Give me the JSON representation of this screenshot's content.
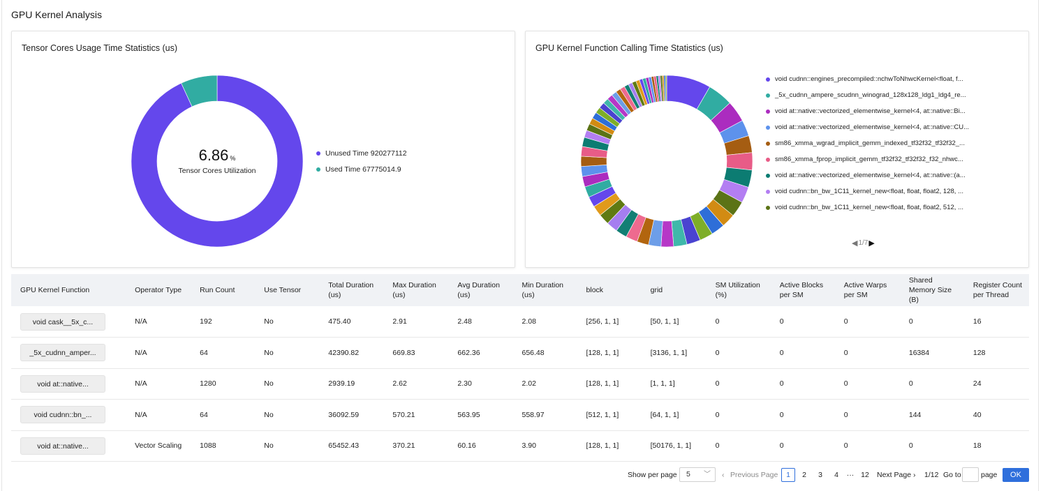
{
  "page": {
    "title": "GPU Kernel Analysis"
  },
  "tensor_card": {
    "title": "Tensor Cores Usage Time Statistics (us)",
    "center_value": "6.86",
    "center_unit": "%",
    "center_label": "Tensor Cores Utilization",
    "legend": [
      {
        "label": "Unused Time 920277112",
        "color": "#6447ec"
      },
      {
        "label": "Used Time 67775014.9",
        "color": "#31aca2"
      }
    ],
    "unused_time": 920277112,
    "used_time": 67775014.9
  },
  "kernel_card": {
    "title": "GPU Kernel Function Calling Time Statistics (us)",
    "legend": [
      {
        "label": "void cudnn::engines_precompiled::nchwToNhwcKernel<float, f...",
        "color": "#6447ec"
      },
      {
        "label": "_5x_cudnn_ampere_scudnn_winograd_128x128_ldg1_ldg4_re...",
        "color": "#31aca2"
      },
      {
        "label": "void at::native::vectorized_elementwise_kernel<4, at::native::Bi...",
        "color": "#ab2cbf"
      },
      {
        "label": "void at::native::vectorized_elementwise_kernel<4, at::native::CU...",
        "color": "#5d92ec"
      },
      {
        "label": "sm86_xmma_wgrad_implicit_gemm_indexed_tf32f32_tf32f32_...",
        "color": "#a55d12"
      },
      {
        "label": "sm86_xmma_fprop_implicit_gemm_tf32f32_tf32f32_f32_nhwc...",
        "color": "#e85c87"
      },
      {
        "label": "void at::native::vectorized_elementwise_kernel<4, at::native::(a...",
        "color": "#0c7c72"
      },
      {
        "label": "void cudnn::bn_bw_1C11_kernel_new<float, float, float2, 128, ...",
        "color": "#b37ef2"
      },
      {
        "label": "void cudnn::bn_bw_1C11_kernel_new<float, float, float2, 512, ...",
        "color": "#5b7316"
      }
    ],
    "legend_page": "1/7",
    "slices": [
      11,
      6.3,
      5.3,
      4.0,
      4.2,
      4.3,
      4.3,
      4.0,
      3.9,
      3.4,
      3.4,
      3.3,
      3.4,
      3.3,
      3.1,
      3.1,
      2.9,
      2.9,
      2.8,
      2.8,
      2.7,
      2.6,
      2.6,
      2.7,
      2.6,
      2.5,
      2.5,
      2.4,
      2.3,
      1.8,
      1.7,
      1.6,
      1.6,
      1.5,
      1.5,
      1.4,
      1.4,
      1.3,
      1.2,
      1.2,
      1.1,
      1.0,
      1.0,
      0.9,
      0.8,
      0.8,
      0.7,
      0.7,
      0.6,
      0.6,
      0.5,
      0.5,
      0.5,
      0.4,
      0.4,
      0.3
    ],
    "slice_colors": [
      "#6447ec",
      "#31aca2",
      "#ab2cbf",
      "#5d92ec",
      "#a55d12",
      "#e85c87",
      "#0c7c72",
      "#b37ef2",
      "#5b7316",
      "#d28b13",
      "#2e6ed8",
      "#7eae28",
      "#4a43d0",
      "#3fb8aa",
      "#b637c7",
      "#6d9ee8",
      "#b2650f",
      "#ee6a8f",
      "#127f74",
      "#a57ef0",
      "#5f7a13",
      "#e09a1b"
    ]
  },
  "table": {
    "headers": [
      "GPU Kernel Function",
      "Operator Type",
      "Run Count",
      "Use Tensor",
      "Total Duration (us)",
      "Max Duration (us)",
      "Avg Duration (us)",
      "Min Duration (us)",
      "block",
      "grid",
      "SM Utilization (%)",
      "Active Blocks per SM",
      "Active Warps per SM",
      "Shared Memory Size (B)",
      "Register Count per Thread"
    ],
    "rows": [
      [
        "void cask__5x_c...",
        "N/A",
        "192",
        "No",
        "475.40",
        "2.91",
        "2.48",
        "2.08",
        "[256, 1, 1]",
        "[50, 1, 1]",
        "0",
        "0",
        "0",
        "0",
        "16"
      ],
      [
        "_5x_cudnn_amper...",
        "N/A",
        "64",
        "No",
        "42390.82",
        "669.83",
        "662.36",
        "656.48",
        "[128, 1, 1]",
        "[3136, 1, 1]",
        "0",
        "0",
        "0",
        "16384",
        "128"
      ],
      [
        "void at::native...",
        "N/A",
        "1280",
        "No",
        "2939.19",
        "2.62",
        "2.30",
        "2.02",
        "[128, 1, 1]",
        "[1, 1, 1]",
        "0",
        "0",
        "0",
        "0",
        "24"
      ],
      [
        "void cudnn::bn_...",
        "N/A",
        "64",
        "No",
        "36092.59",
        "570.21",
        "563.95",
        "558.97",
        "[512, 1, 1]",
        "[64, 1, 1]",
        "0",
        "0",
        "0",
        "144",
        "40"
      ],
      [
        "void at::native...",
        "Vector Scaling",
        "1088",
        "No",
        "65452.43",
        "370.21",
        "60.16",
        "3.90",
        "[128, 1, 1]",
        "[50176, 1, 1]",
        "0",
        "0",
        "0",
        "0",
        "18"
      ]
    ]
  },
  "pagination": {
    "show_per_page_label": "Show per page",
    "per_page_value": "5",
    "prev_label": "Previous Page",
    "pages": [
      "1",
      "2",
      "3",
      "4",
      "···",
      "12"
    ],
    "active_page": "1",
    "next_label": "Next Page",
    "page_count": "1/12",
    "goto_label": "Go to",
    "page_suffix": "page",
    "ok_label": "OK"
  }
}
